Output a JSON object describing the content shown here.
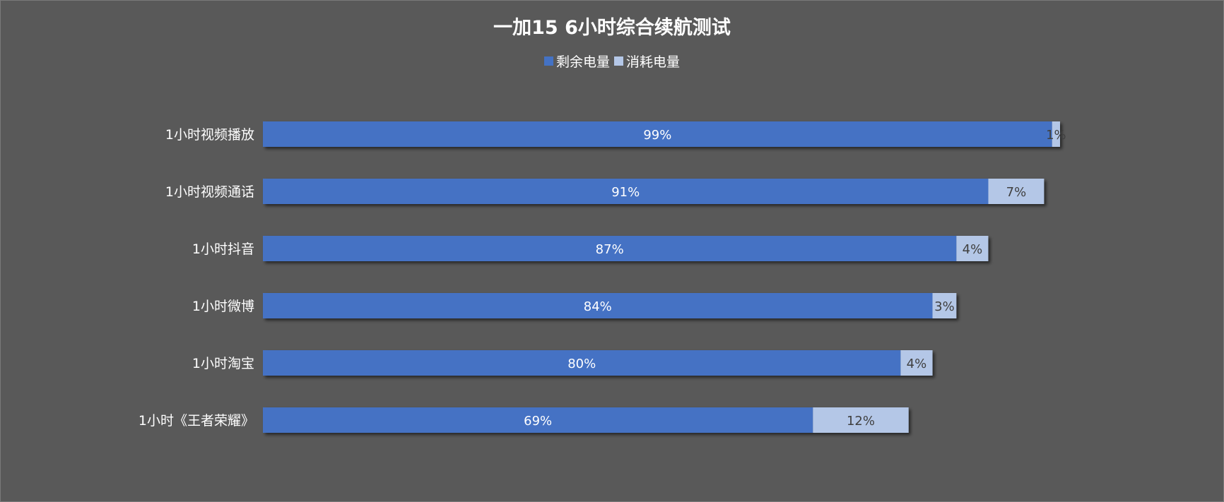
{
  "chart_data": {
    "type": "bar",
    "orientation": "horizontal",
    "stacked": true,
    "title": "一加15 6小时综合续航测试",
    "legend_position": "top",
    "grid": false,
    "xlim": [
      0,
      100
    ],
    "categories": [
      "1小时视频播放",
      "1小时视频通话",
      "1小时抖音",
      "1小时微博",
      "1小时淘宝",
      "1小时《王者荣耀》"
    ],
    "series": [
      {
        "name": "剩余电量",
        "color": "#4472C4",
        "values": [
          99,
          91,
          87,
          84,
          80,
          69
        ],
        "labels": [
          "99%",
          "91%",
          "87%",
          "84%",
          "80%",
          "69%"
        ]
      },
      {
        "name": "消耗电量",
        "color": "#B4C7E7",
        "values": [
          1,
          7,
          4,
          3,
          4,
          12
        ],
        "labels": [
          "1%",
          "7%",
          "4%",
          "3%",
          "4%",
          "12%"
        ]
      }
    ]
  },
  "colors": {
    "background": "#595959",
    "text": "#FFFFFF",
    "label_on_light": "#404040"
  }
}
